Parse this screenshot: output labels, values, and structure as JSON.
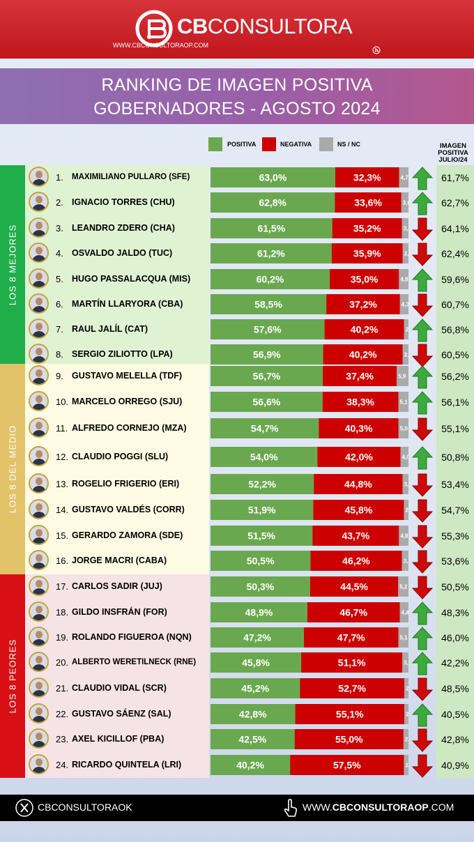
{
  "brand": {
    "name_bold": "CB",
    "name_rest": "CONSULTORA",
    "url": "WWW.CBCONSULTORAOP.COM"
  },
  "title": {
    "line1": "RANKING DE IMAGEN POSITIVA",
    "line2": "GOBERNADORES - AGOSTO 2024"
  },
  "legend": {
    "positive": "POSITIVA",
    "negative": "NEGATIVA",
    "nsnc": "NS / NC"
  },
  "prev_header": [
    "IMAGEN",
    "POSITIVA",
    "JULIO/24"
  ],
  "colors": {
    "positive": "#6aa84f",
    "negative": "#cc0000",
    "nsnc": "#aaaaaa",
    "up": "#3caa3c",
    "down": "#cc0a0a"
  },
  "groups": [
    {
      "label": "LOS 8 MEJORES",
      "color": "#1fae4a",
      "bg": "#dff2d2"
    },
    {
      "label": "LOS 8 DEL MEDIO",
      "color": "#e2c36a",
      "bg": "#fdfbe3"
    },
    {
      "label": "LOS 8 PEORES",
      "color": "#d80f14",
      "bg": "#f6e3e6"
    }
  ],
  "chart_data": {
    "type": "bar",
    "title": "RANKING DE IMAGEN POSITIVA GOBERNADORES - AGOSTO 2024",
    "ylim": [
      0,
      100
    ],
    "series_names": [
      "POSITIVA",
      "NEGATIVA",
      "NS / NC"
    ],
    "rows": [
      {
        "rank": "1.",
        "name": "MAXIMILIANO PULLARO (SFE)",
        "pos": 63.0,
        "neg": 32.3,
        "ns": 4.7,
        "pos_label": "63,0%",
        "neg_label": "32,3%",
        "ns_label": "4,7",
        "trend": "up",
        "prev": "61,7%"
      },
      {
        "rank": "2.",
        "name": "IGNACIO TORRES (CHU)",
        "pos": 62.8,
        "neg": 33.6,
        "ns": 3.6,
        "pos_label": "62,8%",
        "neg_label": "33,6%",
        "ns_label": "3,6",
        "trend": "up",
        "prev": "62,7%"
      },
      {
        "rank": "3.",
        "name": "LEANDRO ZDERO (CHA)",
        "pos": 61.5,
        "neg": 35.2,
        "ns": 3.3,
        "pos_label": "61,5%",
        "neg_label": "35,2%",
        "ns_label": "3,3",
        "trend": "down",
        "prev": "64,1%"
      },
      {
        "rank": "4.",
        "name": "OSVALDO JALDO (TUC)",
        "pos": 61.2,
        "neg": 35.9,
        "ns": 2.9,
        "pos_label": "61,2%",
        "neg_label": "35,9%",
        "ns_label": "2,9",
        "trend": "down",
        "prev": "62,4%"
      },
      {
        "rank": "5.",
        "name": "HUGO PASSALACQUA (MIS)",
        "pos": 60.2,
        "neg": 35.0,
        "ns": 4.8,
        "pos_label": "60,2%",
        "neg_label": "35,0%",
        "ns_label": "4,8",
        "trend": "up",
        "prev": "59,6%"
      },
      {
        "rank": "6.",
        "name": "MARTÍN LLARYORA (CBA)",
        "pos": 58.5,
        "neg": 37.2,
        "ns": 4.3,
        "pos_label": "58,5%",
        "neg_label": "37,2%",
        "ns_label": "4,3",
        "trend": "down",
        "prev": "60,7%"
      },
      {
        "rank": "7.",
        "name": "RAUL JALÍL (CAT)",
        "pos": 57.6,
        "neg": 40.2,
        "ns": 2.2,
        "pos_label": "57,6%",
        "neg_label": "40,2%",
        "ns_label": "2,2",
        "trend": "up",
        "prev": "56,8%"
      },
      {
        "rank": "8.",
        "name": "SERGIO ZILIOTTO (LPA)",
        "pos": 56.9,
        "neg": 40.2,
        "ns": 2.9,
        "pos_label": "56,9%",
        "neg_label": "40,2%",
        "ns_label": "2,9",
        "trend": "down",
        "prev": "60,5%"
      },
      {
        "rank": "9.",
        "name": "GUSTAVO MELELLA (TDF)",
        "pos": 56.7,
        "neg": 37.4,
        "ns": 5.9,
        "pos_label": "56,7%",
        "neg_label": "37,4%",
        "ns_label": "5,9",
        "trend": "up",
        "prev": "56,2%"
      },
      {
        "rank": "10.",
        "name": "MARCELO ORREGO (SJU)",
        "pos": 56.6,
        "neg": 38.3,
        "ns": 5.1,
        "pos_label": "56,6%",
        "neg_label": "38,3%",
        "ns_label": "5,1",
        "trend": "up",
        "prev": "56,1%"
      },
      {
        "rank": "11.",
        "name": "ALFREDO CORNEJO (MZA)",
        "pos": 54.7,
        "neg": 40.3,
        "ns": 5.0,
        "pos_label": "54,7%",
        "neg_label": "40,3%",
        "ns_label": "5,0",
        "trend": "down",
        "prev": "55,1%"
      },
      {
        "rank": "12.",
        "name": "CLAUDIO POGGI (SLU)",
        "pos": 54.0,
        "neg": 42.0,
        "ns": 4.0,
        "pos_label": "54,0%",
        "neg_label": "42,0%",
        "ns_label": "4,0",
        "trend": "up",
        "prev": "50,8%"
      },
      {
        "rank": "13.",
        "name": "ROGELIO FRIGERIO (ERI)",
        "pos": 52.2,
        "neg": 44.8,
        "ns": 3.0,
        "pos_label": "52,2%",
        "neg_label": "44,8%",
        "ns_label": "3,0",
        "trend": "down",
        "prev": "53,4%"
      },
      {
        "rank": "14.",
        "name": "GUSTAVO VALDÉS (CORR)",
        "pos": 51.9,
        "neg": 45.8,
        "ns": 2.3,
        "pos_label": "51,9%",
        "neg_label": "45,8%",
        "ns_label": "2,3",
        "trend": "down",
        "prev": "54,7%"
      },
      {
        "rank": "15.",
        "name": "GERARDO ZAMORA (SDE)",
        "pos": 51.5,
        "neg": 43.7,
        "ns": 4.8,
        "pos_label": "51,5%",
        "neg_label": "43,7%",
        "ns_label": "4,8",
        "trend": "down",
        "prev": "55,3%"
      },
      {
        "rank": "16.",
        "name": "JORGE MACRI (CABA)",
        "pos": 50.5,
        "neg": 46.2,
        "ns": 3.3,
        "pos_label": "50,5%",
        "neg_label": "46,2%",
        "ns_label": "3,3",
        "trend": "down",
        "prev": "53,6%"
      },
      {
        "rank": "17.",
        "name": "CARLOS SADIR (JUJ)",
        "pos": 50.3,
        "neg": 44.5,
        "ns": 5.2,
        "pos_label": "50,3%",
        "neg_label": "44,5%",
        "ns_label": "5,2",
        "trend": "down",
        "prev": "50,5%"
      },
      {
        "rank": "18.",
        "name": "GILDO INSFRÁN (FOR)",
        "pos": 48.9,
        "neg": 46.7,
        "ns": 4.4,
        "pos_label": "48,9%",
        "neg_label": "46,7%",
        "ns_label": "4,4",
        "trend": "up",
        "prev": "48,3%"
      },
      {
        "rank": "19.",
        "name": "ROLANDO FIGUEROA (NQN)",
        "pos": 47.2,
        "neg": 47.7,
        "ns": 5.1,
        "pos_label": "47,2%",
        "neg_label": "47,7%",
        "ns_label": "5,1",
        "trend": "up",
        "prev": "46,0%"
      },
      {
        "rank": "20.",
        "name": "ALBERTO WERETILNECK (RNE)",
        "pos": 45.8,
        "neg": 51.1,
        "ns": 3.1,
        "pos_label": "45,8%",
        "neg_label": "51,1%",
        "ns_label": "3,1",
        "trend": "up",
        "prev": "42,2%"
      },
      {
        "rank": "21.",
        "name": "CLAUDIO VIDAL (SCR)",
        "pos": 45.2,
        "neg": 52.7,
        "ns": 2.1,
        "pos_label": "45,2%",
        "neg_label": "52,7%",
        "ns_label": "2,1",
        "trend": "down",
        "prev": "48,5%"
      },
      {
        "rank": "22.",
        "name": "GUSTAVO SÁENZ (SAL)",
        "pos": 42.8,
        "neg": 55.1,
        "ns": 2.1,
        "pos_label": "42,8%",
        "neg_label": "55,1%",
        "ns_label": "2,1",
        "trend": "up",
        "prev": "40,5%"
      },
      {
        "rank": "23.",
        "name": "AXEL KICILLOF (PBA)",
        "pos": 42.5,
        "neg": 55.0,
        "ns": 2.5,
        "pos_label": "42,5%",
        "neg_label": "55,0%",
        "ns_label": "2,5",
        "trend": "down",
        "prev": "42,8%"
      },
      {
        "rank": "24.",
        "name": "RICARDO QUINTELA (LRI)",
        "pos": 40.2,
        "neg": 57.5,
        "ns": 2.3,
        "pos_label": "40,2%",
        "neg_label": "57,5%",
        "ns_label": "2,3",
        "trend": "down",
        "prev": "40,9%"
      }
    ]
  },
  "footer": {
    "handle": "CBCONSULTORAOK",
    "site_pre": "WWW.",
    "site_bold": "CBCONSULTORAOP",
    "site_post": ".COM"
  }
}
